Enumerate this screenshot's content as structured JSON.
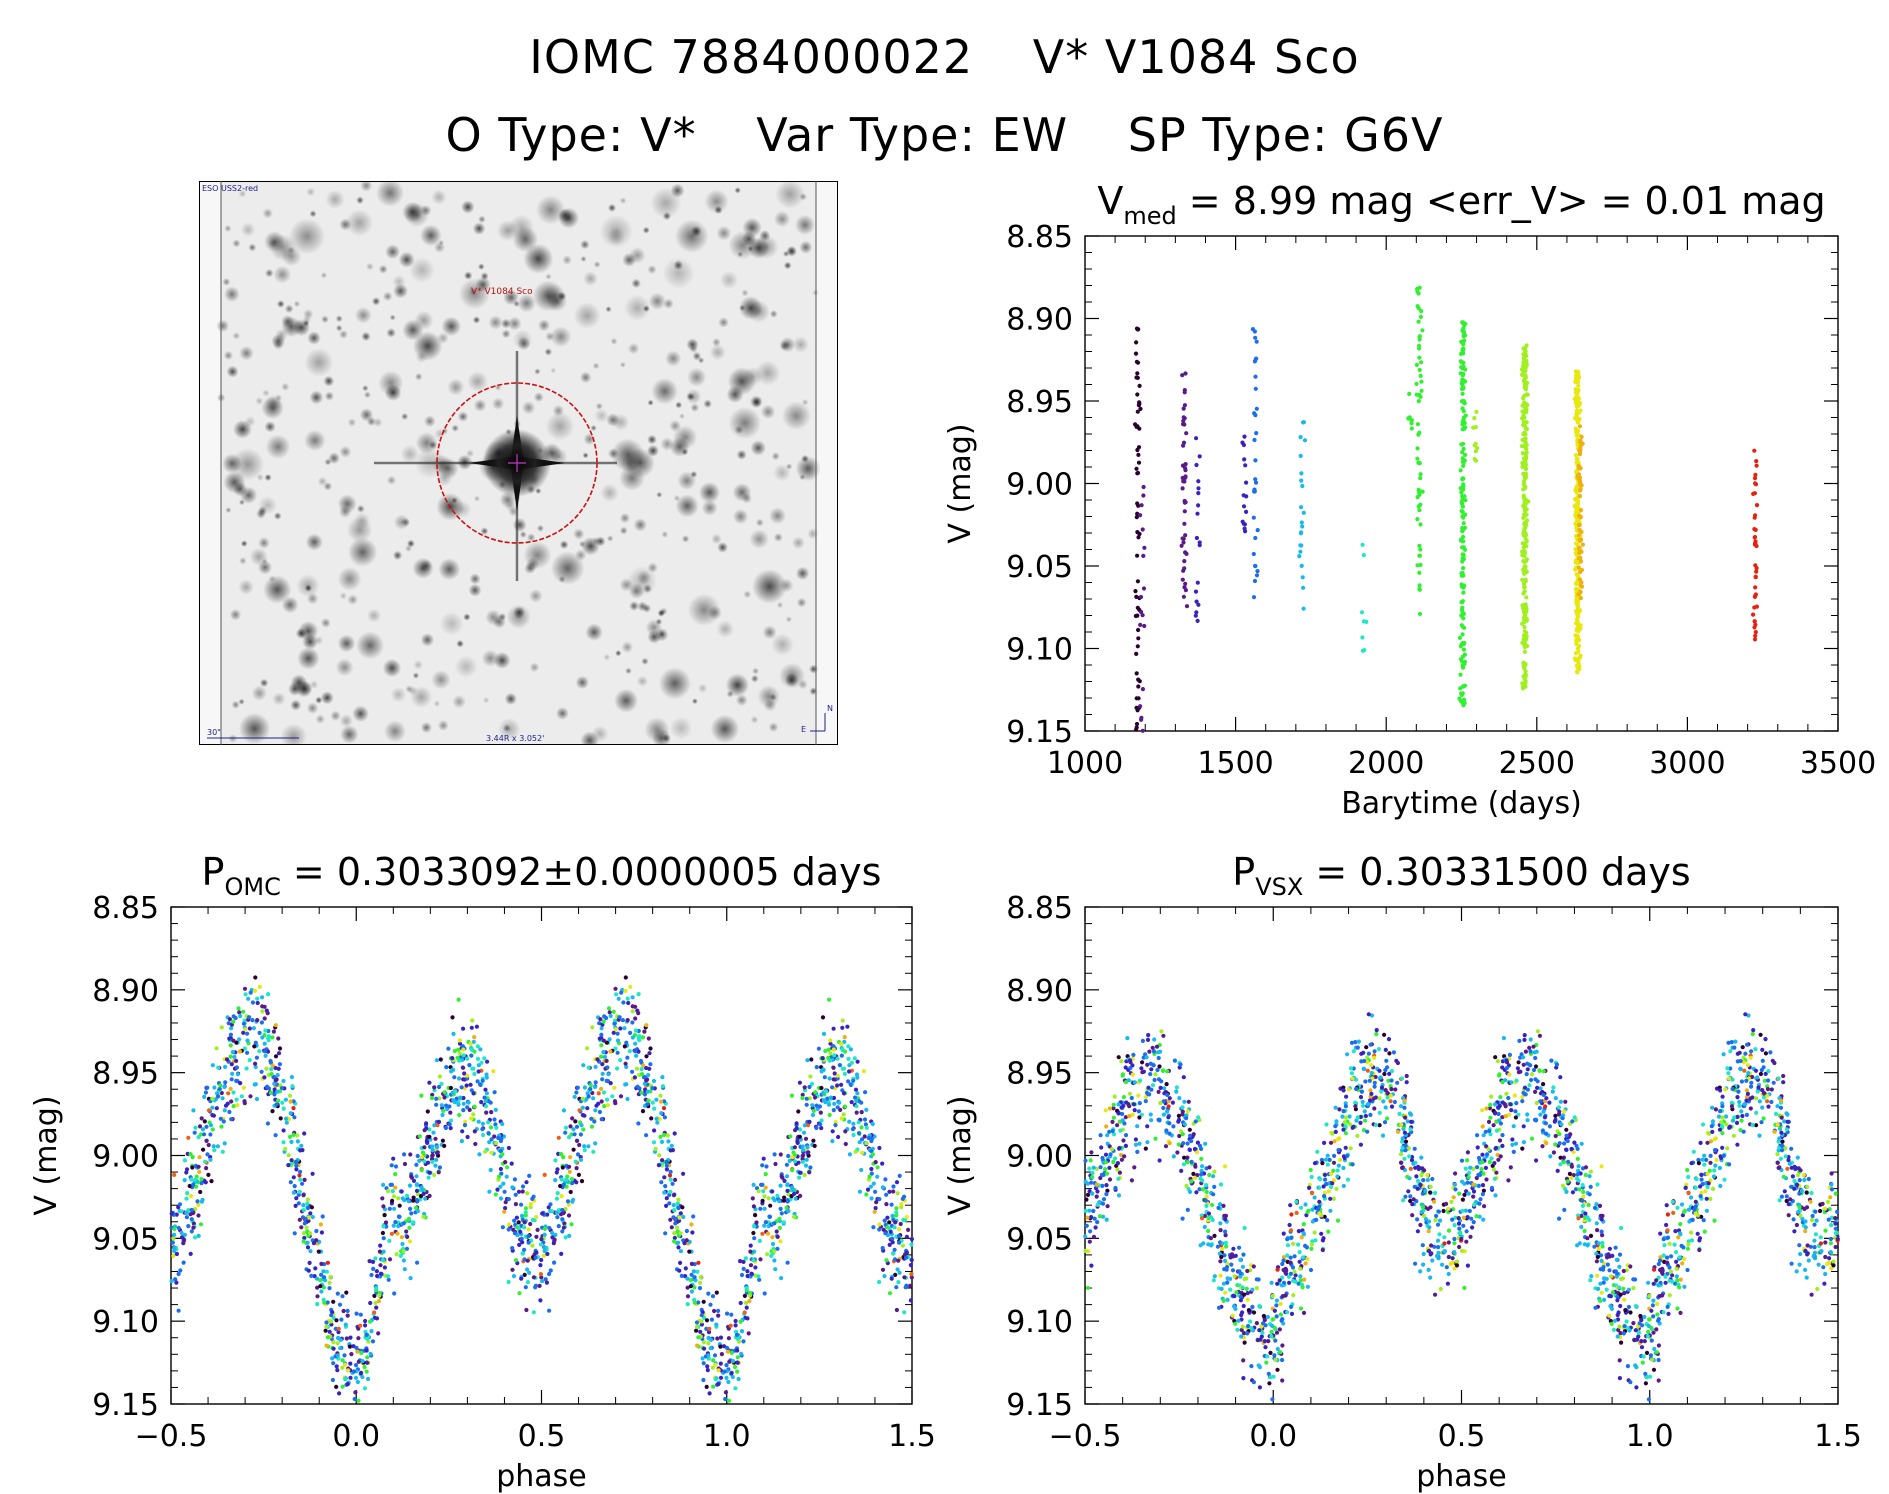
{
  "header": {
    "omc_id": "IOMC 7884000022",
    "simbad_name": "V* V1084 Sco",
    "o_type": "O Type: V*",
    "var_type": "Var Type: EW",
    "sp_type": "SP Type: G6V"
  },
  "sky_image": {
    "survey_label": "ESO USS2-red",
    "target_label": "V* V1084 Sco",
    "scale_label": "30\"",
    "size_label": "3.44R x 3.052'",
    "compass_n": "N",
    "compass_e": "E"
  },
  "colors": {
    "sequence": [
      "#2a0030",
      "#5a1a8a",
      "#3a22c0",
      "#1a6ef0",
      "#18b8f0",
      "#1ce8c8",
      "#30f030",
      "#a0f020",
      "#e8e810",
      "#f0b010",
      "#f06010",
      "#e82010"
    ]
  },
  "chart_data": [
    {
      "id": "lightcurve",
      "type": "scatter",
      "title_main": "V",
      "title_sub": "med",
      "title_rest": " = 8.99 mag <err_V> = 0.01 mag",
      "xlabel": "Barytime (days)",
      "ylabel": "V (mag)",
      "xlim": [
        1000,
        3500
      ],
      "ylim": [
        9.15,
        8.85
      ],
      "xticks": [
        1000,
        1500,
        2000,
        2500,
        3000,
        3500
      ],
      "yticks": [
        8.85,
        8.9,
        8.95,
        9.0,
        9.05,
        9.1,
        9.15
      ],
      "xtick_labels": [
        "1000",
        "1500",
        "2000",
        "2500",
        "3000",
        "3500"
      ],
      "ytick_labels": [
        "8.85",
        "8.90",
        "8.95",
        "9.00",
        "9.05",
        "9.10",
        "9.15"
      ],
      "groups": [
        {
          "t": 1175,
          "ymin": 8.905,
          "ymax": 9.15,
          "n": 60,
          "color_index": 0
        },
        {
          "t": 1190,
          "ymin": 9.0,
          "ymax": 9.15,
          "n": 18,
          "color_index": 1
        },
        {
          "t": 1330,
          "ymin": 8.93,
          "ymax": 9.08,
          "n": 45,
          "color_index": 1
        },
        {
          "t": 1375,
          "ymin": 8.97,
          "ymax": 9.085,
          "n": 18,
          "color_index": 2
        },
        {
          "t": 1530,
          "ymin": 8.97,
          "ymax": 9.03,
          "n": 15,
          "color_index": 2
        },
        {
          "t": 1565,
          "ymin": 8.905,
          "ymax": 9.07,
          "n": 30,
          "color_index": 3
        },
        {
          "t": 1720,
          "ymin": 8.96,
          "ymax": 9.08,
          "n": 22,
          "color_index": 4
        },
        {
          "t": 1925,
          "ymin": 9.025,
          "ymax": 9.105,
          "n": 8,
          "color_index": 5
        },
        {
          "t": 2080,
          "ymin": 8.93,
          "ymax": 8.975,
          "n": 8,
          "color_index": 6
        },
        {
          "t": 2110,
          "ymin": 8.88,
          "ymax": 9.08,
          "n": 60,
          "color_index": 6
        },
        {
          "t": 2255,
          "ymin": 8.9,
          "ymax": 9.135,
          "n": 170,
          "color_index": 6
        },
        {
          "t": 2295,
          "ymin": 8.95,
          "ymax": 8.99,
          "n": 10,
          "color_index": 7
        },
        {
          "t": 2460,
          "ymin": 8.915,
          "ymax": 9.125,
          "n": 260,
          "color_index": 7
        },
        {
          "t": 2635,
          "ymin": 8.93,
          "ymax": 9.115,
          "n": 250,
          "color_index": 8
        },
        {
          "t": 2645,
          "ymin": 8.965,
          "ymax": 9.07,
          "n": 60,
          "color_index": 9
        },
        {
          "t": 3225,
          "ymin": 8.975,
          "ymax": 9.095,
          "n": 40,
          "color_index": 11
        }
      ]
    },
    {
      "id": "phase_omc",
      "type": "scatter",
      "title_main": "P",
      "title_sub": "OMC",
      "title_rest": " = 0.3033092±0.0000005 days",
      "xlabel": "phase",
      "ylabel": "V (mag)",
      "xlim": [
        -0.5,
        1.5
      ],
      "ylim": [
        9.15,
        8.85
      ],
      "period_days": 0.3033092,
      "xticks": [
        -0.5,
        0.0,
        0.5,
        1.0,
        1.5
      ],
      "yticks": [
        8.85,
        8.9,
        8.95,
        9.0,
        9.05,
        9.1,
        9.15
      ],
      "xtick_labels": [
        "−0.5",
        "0.0",
        "0.5",
        "1.0",
        "1.5"
      ],
      "ytick_labels": [
        "8.85",
        "8.90",
        "8.95",
        "9.00",
        "9.05",
        "9.10",
        "9.15"
      ],
      "curve_knots": {
        "phase": [
          0.0,
          0.1,
          0.3,
          0.48,
          0.72,
          1.0
        ],
        "mag": [
          9.13,
          9.04,
          8.95,
          9.055,
          8.93,
          9.13
        ]
      },
      "n_points": 1200
    },
    {
      "id": "phase_vsx",
      "type": "scatter",
      "title_main": "P",
      "title_sub": "VSX",
      "title_rest": " = 0.30331500 days",
      "xlabel": "phase",
      "ylabel": "V (mag)",
      "xlim": [
        -0.5,
        1.5
      ],
      "ylim": [
        9.15,
        8.85
      ],
      "period_days": 0.303315,
      "xticks": [
        -0.5,
        0.0,
        0.5,
        1.0,
        1.5
      ],
      "yticks": [
        8.85,
        8.9,
        8.95,
        9.0,
        9.05,
        9.1,
        9.15
      ],
      "xtick_labels": [
        "−0.5",
        "0.0",
        "0.5",
        "1.0",
        "1.5"
      ],
      "ytick_labels": [
        "8.85",
        "8.90",
        "8.95",
        "9.00",
        "9.05",
        "9.10",
        "9.15"
      ],
      "curve_knots": {
        "phase": [
          0.0,
          0.05,
          0.27,
          0.45,
          0.67,
          1.0
        ],
        "mag": [
          9.11,
          9.06,
          8.95,
          9.05,
          8.96,
          9.11
        ]
      },
      "n_points": 1200
    }
  ]
}
